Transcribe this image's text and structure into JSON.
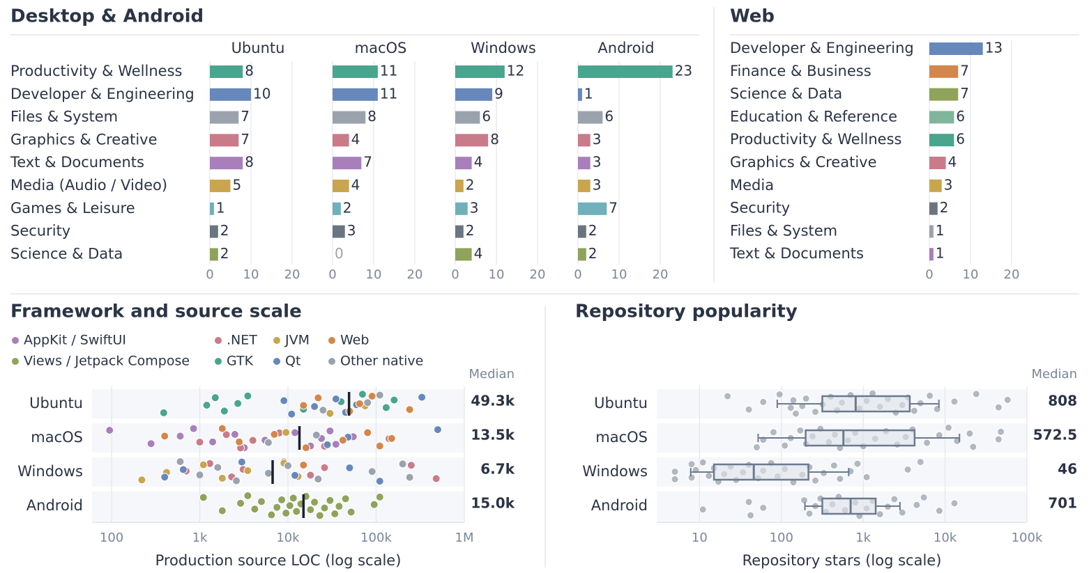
{
  "chart_data": [
    {
      "type": "bar",
      "title": "Desktop & Android",
      "categories": [
        "Productivity & Wellness",
        "Developer & Engineering",
        "Files & System",
        "Graphics & Creative",
        "Text & Documents",
        "Media (Audio / Video)",
        "Games & Leisure",
        "Security",
        "Science & Data"
      ],
      "colors": [
        "#4aa58e",
        "#6688bb",
        "#9aa3ad",
        "#c97b8a",
        "#a87fbb",
        "#c9a54e",
        "#6fb0bb",
        "#6b7580",
        "#8fa35a"
      ],
      "series": [
        {
          "name": "Ubuntu",
          "values": [
            8,
            10,
            7,
            7,
            8,
            5,
            1,
            2,
            2
          ]
        },
        {
          "name": "macOS",
          "values": [
            11,
            11,
            8,
            4,
            7,
            4,
            2,
            3,
            0
          ]
        },
        {
          "name": "Windows",
          "values": [
            12,
            9,
            6,
            8,
            4,
            2,
            3,
            2,
            4
          ]
        },
        {
          "name": "Android",
          "values": [
            23,
            1,
            6,
            3,
            3,
            3,
            7,
            2,
            2
          ]
        }
      ],
      "xlim": [
        0,
        25
      ],
      "xticks": [
        0,
        10,
        20
      ],
      "grid": true
    },
    {
      "type": "bar",
      "title": "Web",
      "categories": [
        "Developer & Engineering",
        "Finance & Business",
        "Science & Data",
        "Education & Reference",
        "Productivity & Wellness",
        "Graphics & Creative",
        "Media",
        "Security",
        "Files & System",
        "Text & Documents"
      ],
      "colors": [
        "#6688bb",
        "#d4874a",
        "#8fa35a",
        "#7fb59a",
        "#4aa58e",
        "#c97b8a",
        "#c9a54e",
        "#6b7580",
        "#9aa3ad",
        "#a87fbb"
      ],
      "values": [
        13,
        7,
        7,
        6,
        6,
        4,
        3,
        2,
        1,
        1
      ],
      "xlim": [
        0,
        25
      ],
      "xticks": [
        0,
        10,
        20
      ],
      "grid": true
    },
    {
      "type": "scatter",
      "title": "Framework and source scale",
      "categories": [
        "Ubuntu",
        "macOS",
        "Windows",
        "Android"
      ],
      "xlabel": "Production source LOC (log scale)",
      "log_x": true,
      "xlim": [
        60,
        1000000
      ],
      "xticks": [
        100,
        {
          "value": 1000,
          "label": "1k"
        },
        {
          "value": 10000,
          "label": "10k"
        },
        {
          "value": 100000,
          "label": "100k"
        },
        {
          "value": 1000000,
          "label": "1M"
        }
      ],
      "median_title": "Median",
      "medians": {
        "values": [
          49300,
          13500,
          6700,
          15000
        ],
        "value_labels": [
          "49.3k",
          "13.5k",
          "6.7k",
          "15.0k"
        ]
      },
      "series": [
        {
          "name": "AppKit / SwiftUI",
          "color": "#a87fbb",
          "x": [
            95,
            280,
            600,
            850,
            1400,
            2500,
            3200,
            5500,
            12000,
            18000,
            24000,
            30000,
            35000,
            55000
          ],
          "y": [
            "macOS",
            "macOS",
            "macOS",
            "macOS",
            "macOS",
            "macOS",
            "macOS",
            "macOS",
            "macOS",
            "macOS",
            "macOS",
            "macOS",
            "macOS",
            "macOS"
          ]
        },
        {
          "name": "Views / Jetpack Compose",
          "color": "#8fa35a",
          "x": [
            1100,
            1800,
            2900,
            3500,
            4200,
            5000,
            6500,
            7500,
            8500,
            9500,
            10500,
            11500,
            12500,
            14000,
            16000,
            18000,
            20000,
            23000,
            26000,
            30000,
            34000,
            38000,
            45000,
            52000,
            95000,
            110000
          ],
          "y": [
            "Android",
            "Android",
            "Android",
            "Android",
            "Android",
            "Android",
            "Android",
            "Android",
            "Android",
            "Android",
            "Android",
            "Android",
            "Android",
            "Android",
            "Android",
            "Android",
            "Android",
            "Android",
            "Android",
            "Android",
            "Android",
            "Android",
            "Android",
            "Android",
            "Android",
            "Android"
          ]
        },
        {
          "name": ".NET",
          "color": "#c97b8a",
          "x": [
            1000,
            2000,
            2900,
            4000,
            8000,
            26000,
            140000,
            250000,
            480000,
            700,
            1300,
            2300,
            3100,
            9000,
            18000,
            26000
          ],
          "y": [
            "macOS",
            "macOS",
            "macOS",
            "macOS",
            "macOS",
            "macOS",
            "macOS",
            "Windows",
            "Windows",
            "Windows",
            "Windows",
            "Windows",
            "Windows",
            "Windows",
            "Windows",
            "Windows"
          ]
        },
        {
          "name": "GTK",
          "color": "#4aa58e",
          "x": [
            390,
            1200,
            1500,
            1900,
            2700,
            3500,
            15000,
            40000,
            70000,
            130000,
            160000
          ],
          "y": [
            "Ubuntu",
            "Ubuntu",
            "Ubuntu",
            "Ubuntu",
            "Ubuntu",
            "Ubuntu",
            "Ubuntu",
            "Ubuntu",
            "Ubuntu",
            "Ubuntu",
            "Ubuntu"
          ]
        },
        {
          "name": "JVM",
          "color": "#c9a54e",
          "x": [
            30000,
            75000,
            9500,
            220,
            420,
            1100,
            1800,
            3500,
            9000,
            13000
          ],
          "y": [
            "Ubuntu",
            "Ubuntu",
            "macOS",
            "Windows",
            "Windows",
            "Windows",
            "Windows",
            "Windows",
            "Windows",
            "Windows"
          ]
        },
        {
          "name": "Qt",
          "color": "#6688bb",
          "x": [
            9000,
            11000,
            20000,
            35000,
            45000,
            60000,
            330000,
            28000,
            48000,
            500000,
            400,
            650,
            3000,
            12000,
            50000,
            110000
          ],
          "y": [
            "Ubuntu",
            "Ubuntu",
            "Ubuntu",
            "Ubuntu",
            "Ubuntu",
            "Ubuntu",
            "Ubuntu",
            "macOS",
            "macOS",
            "macOS",
            "Windows",
            "Windows",
            "Windows",
            "Windows",
            "Windows",
            "Windows"
          ]
        },
        {
          "name": "Web",
          "color": "#d4874a",
          "x": [
            15000,
            22000,
            50000,
            65000,
            90000,
            240000,
            400,
            1800,
            2800,
            7000,
            16000,
            42000,
            80000,
            110000,
            150000,
            15000
          ],
          "y": [
            "Ubuntu",
            "Ubuntu",
            "Ubuntu",
            "Ubuntu",
            "Ubuntu",
            "Ubuntu",
            "macOS",
            "macOS",
            "macOS",
            "macOS",
            "macOS",
            "macOS",
            "macOS",
            "macOS",
            "macOS",
            "Windows"
          ]
        },
        {
          "name": "Other native",
          "color": "#9aa3ad",
          "x": [
            25000,
            80000,
            110000,
            6000,
            21000,
            600,
            1000,
            1600,
            2600,
            6000,
            10000,
            22000,
            90000,
            200000,
            240000
          ],
          "y": [
            "Ubuntu",
            "Ubuntu",
            "Ubuntu",
            "macOS",
            "macOS",
            "Windows",
            "Windows",
            "Windows",
            "Windows",
            "Windows",
            "Windows",
            "Windows",
            "Windows",
            "Windows",
            "Windows"
          ]
        }
      ]
    },
    {
      "type": "box",
      "title": "Repository popularity",
      "categories": [
        "Ubuntu",
        "macOS",
        "Windows",
        "Android"
      ],
      "xlabel": "Repository stars (log scale)",
      "log_x": true,
      "xlim": [
        3,
        100000
      ],
      "xticks": [
        10,
        100,
        {
          "value": 1000,
          "label": "1k"
        },
        {
          "value": 10000,
          "label": "10k"
        },
        {
          "value": 100000,
          "label": "100k"
        }
      ],
      "median_title": "Median",
      "box_color": "#6b7a90",
      "point_color": "#9aa3ad",
      "boxes": [
        {
          "whislo": 89,
          "q1": 316,
          "med": 808,
          "q3": 3700,
          "whishi": 8400
        },
        {
          "whislo": 52,
          "q1": 198,
          "med": 572.5,
          "q3": 4240,
          "whishi": 15000
        },
        {
          "whislo": 7.8,
          "q1": 15,
          "med": 46,
          "q3": 214,
          "whishi": 664
        },
        {
          "whislo": 194,
          "q1": 316,
          "med": 701,
          "q3": 1420,
          "whishi": 2810
        }
      ],
      "points": [
        [
          22,
          40,
          60,
          95,
          130,
          140,
          150,
          180,
          200,
          260,
          320,
          400,
          480,
          550,
          700,
          900,
          1100,
          1300,
          1600,
          2000,
          2500,
          3000,
          3500,
          4200,
          5000,
          6500,
          8000,
          13000,
          24000,
          45000,
          58000
        ],
        [
          50,
          60,
          80,
          110,
          130,
          170,
          200,
          240,
          300,
          380,
          450,
          520,
          650,
          800,
          1000,
          1400,
          1900,
          2600,
          3300,
          4000,
          6000,
          8500,
          11000,
          14000,
          20000,
          22000,
          45000,
          48000
        ],
        [
          5,
          5,
          8,
          8,
          9,
          11,
          13,
          15,
          17,
          20,
          24,
          28,
          34,
          40,
          52,
          60,
          75,
          90,
          110,
          140,
          180,
          220,
          260,
          330,
          440,
          520,
          700,
          850,
          1100,
          3500,
          5000
        ],
        [
          11,
          40,
          42,
          60,
          190,
          220,
          260,
          300,
          350,
          420,
          500,
          600,
          800,
          900,
          1100,
          1300,
          1600,
          2000,
          2400,
          3000,
          4500,
          5500,
          8500,
          13000
        ]
      ]
    }
  ]
}
